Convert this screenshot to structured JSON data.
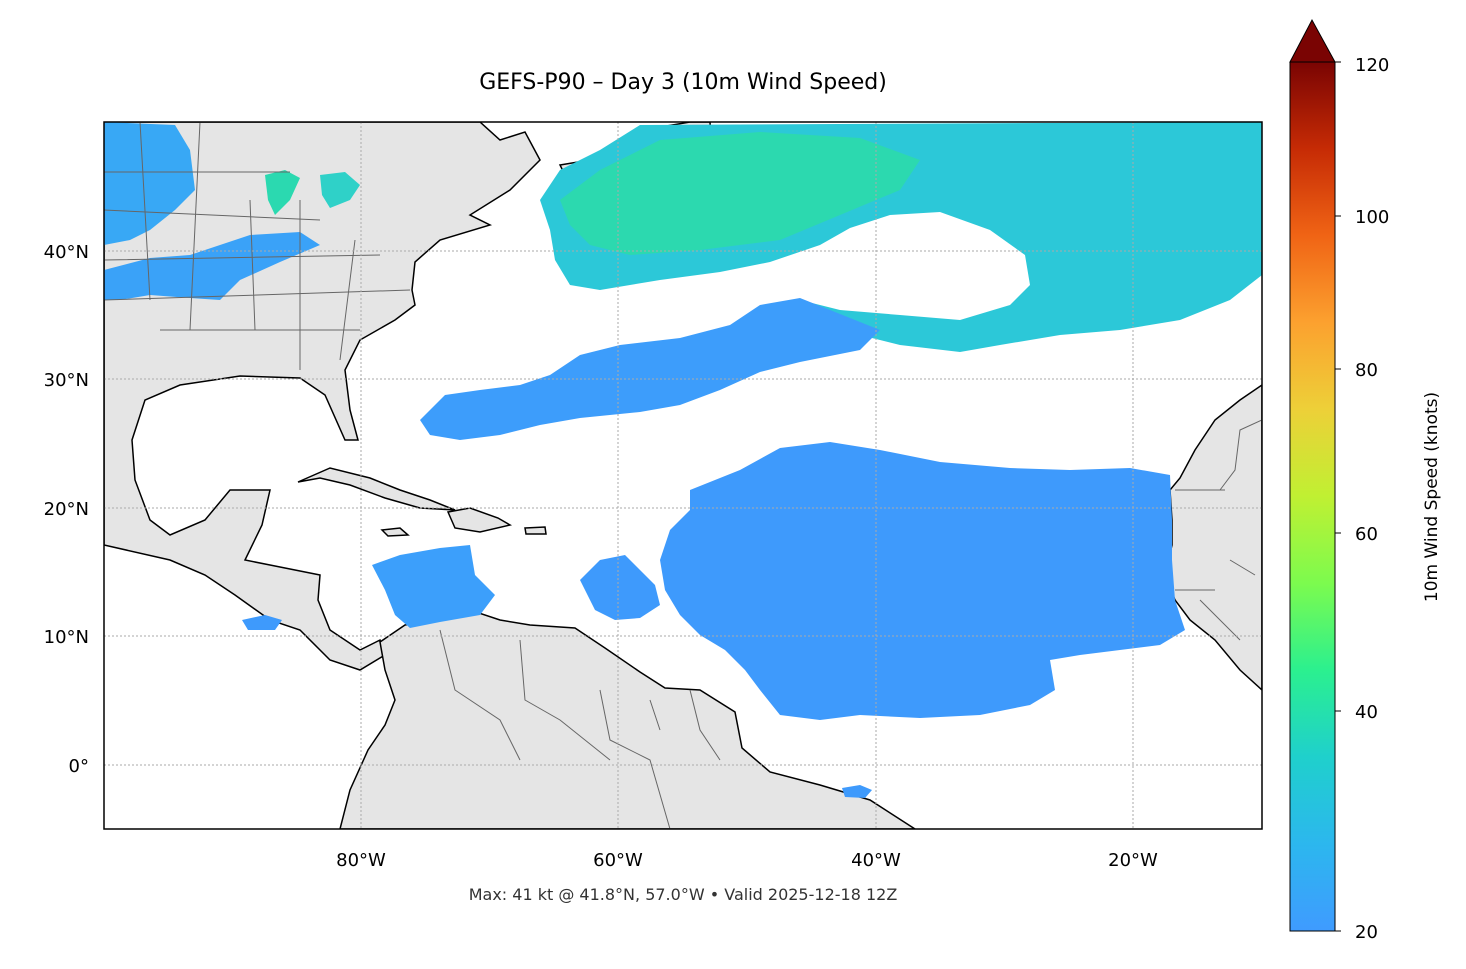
{
  "title": "GEFS-P90 – Day 3 (10m Wind Speed)",
  "footnote": "Max: 41 kt @ 41.8°N, 57.0°W • Valid 2025-12-18 12Z",
  "axes": {
    "x_ticks": [
      "80°W",
      "60°W",
      "40°W",
      "20°W"
    ],
    "y_ticks": [
      "40°N",
      "30°N",
      "20°N",
      "10°N",
      "0°"
    ],
    "lon_range": [
      -100,
      -10
    ],
    "lat_range": [
      -5,
      50
    ],
    "gridlines": true
  },
  "colorbar": {
    "label": "10m Wind Speed (knots)",
    "ticks": [
      "120",
      "100",
      "80",
      "60",
      "40",
      "20"
    ],
    "range": [
      20,
      120
    ],
    "extend": "max",
    "colormap": "turbo (blue → cyan → green → yellow → orange → red)"
  },
  "colors": {
    "land": "#e5e5e5",
    "ocean_calm": "#ffffff",
    "wind_20kt": "#3f9bff",
    "wind_30kt": "#1fc8de",
    "wind_40kt": "#2bf08f",
    "coastline": "#000000",
    "borders": "#666666"
  },
  "chart_data": {
    "type": "heatmap",
    "variable": "10m Wind Speed",
    "units": "knots",
    "max_value": 41,
    "max_location": {
      "lat": 41.8,
      "lon": -57.0
    },
    "valid_time": "2025-12-18 12Z"
  }
}
